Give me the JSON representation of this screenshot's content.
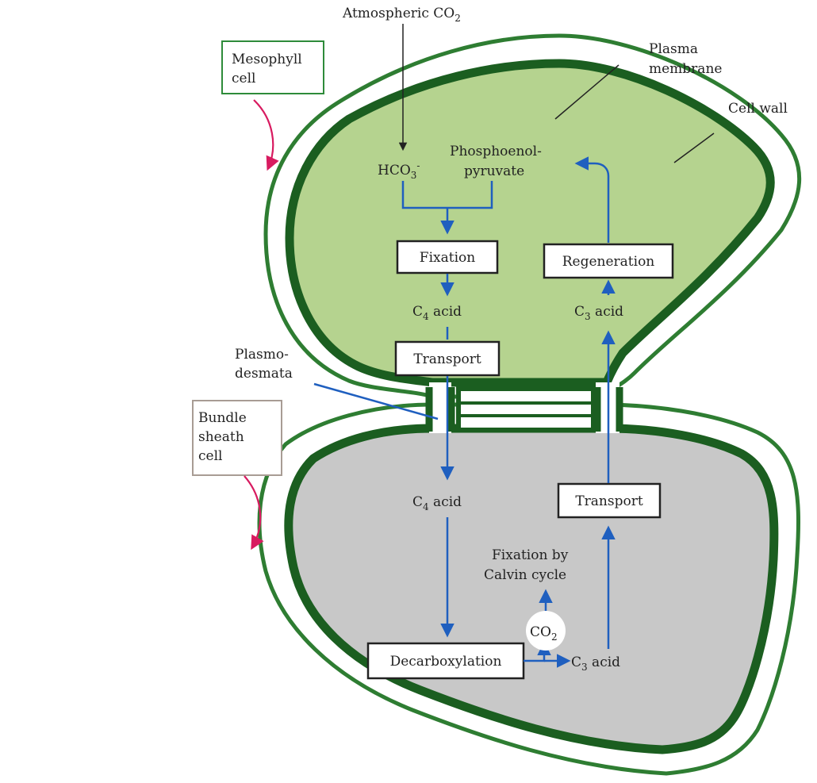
{
  "colors": {
    "wall": "#2e7d32",
    "membrane": "#1b5e20",
    "mesophyll_fill": "#b5d38f",
    "bundle_fill": "#c8c8c8",
    "arrow": "#1f5fbf",
    "curved_arrow": "#d81b60",
    "mesophyll_box": "#2e8b3a",
    "bundle_box": "#a89c94"
  },
  "labels": {
    "atmospheric_co2": {
      "main": "Atmospheric CO",
      "sub": "2"
    },
    "plasma_membrane": [
      "Plasma",
      "membrane"
    ],
    "cell_wall": "Cell wall",
    "mesophyll_cell": [
      "Mesophyll",
      "cell"
    ],
    "bundle_sheath_cell": [
      "Bundle",
      "sheath",
      "cell"
    ],
    "plasmodesmata": [
      "Plasmo-",
      "desmata"
    ],
    "hco3": {
      "main": "HCO",
      "sub": "3",
      "sup": "-"
    },
    "pep": [
      "Phosphoenol-",
      "pyruvate"
    ],
    "c4_acid_top": {
      "pre": "C",
      "sub": "4",
      "post": " acid"
    },
    "c3_acid_top": {
      "pre": "C",
      "sub": "3",
      "post": " acid"
    },
    "c4_acid_bottom": {
      "pre": "C",
      "sub": "4",
      "post": " acid"
    },
    "c3_acid_bottom": {
      "pre": "C",
      "sub": "3",
      "post": " acid"
    },
    "fixation_calvin": [
      "Fixation by",
      "Calvin cycle"
    ],
    "co2_circle": {
      "main": "CO",
      "sub": "2"
    }
  },
  "boxes": {
    "fixation": "Fixation",
    "regeneration": "Regeneration",
    "transport_top": "Transport",
    "transport_bottom": "Transport",
    "decarboxylation": "Decarboxylation"
  }
}
